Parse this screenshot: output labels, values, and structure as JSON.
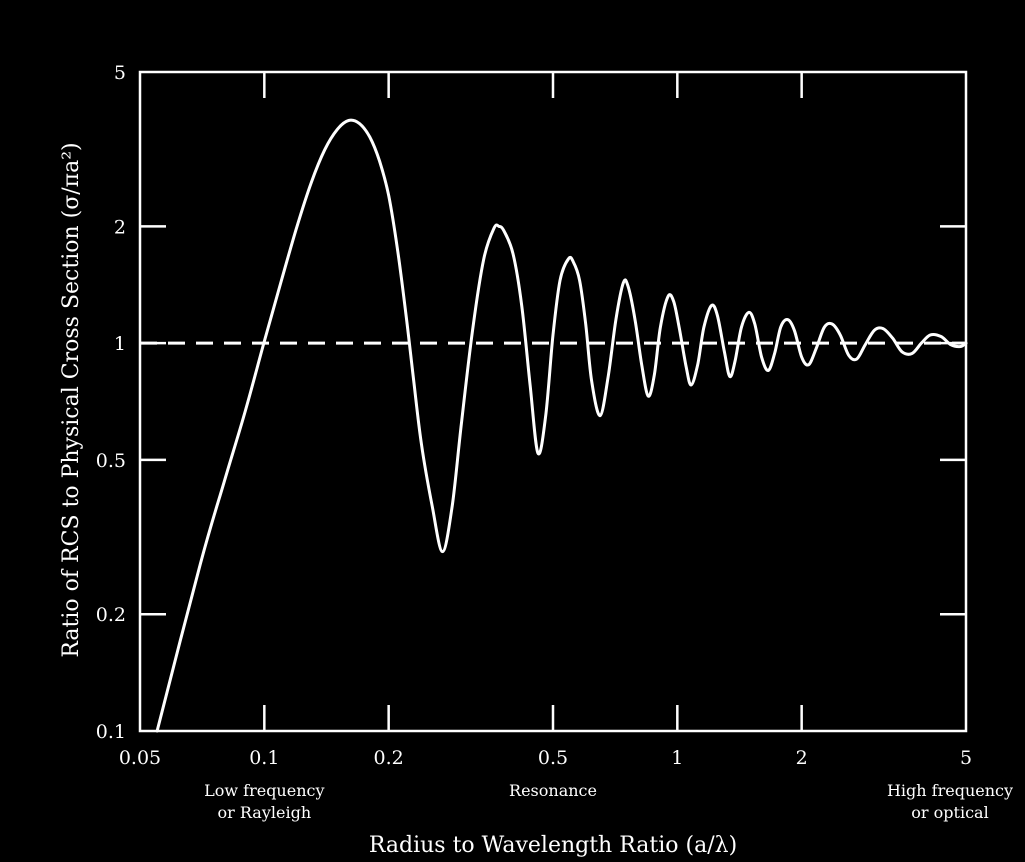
{
  "chart_data": {
    "type": "line",
    "title": "",
    "xlabel": "Radius to Wavelength Ratio (a/λ)",
    "ylabel": "Ratio of RCS to Physical Cross Section (σ/πa²)",
    "xscale": "log",
    "yscale": "log",
    "xlim": [
      0.05,
      5
    ],
    "ylim": [
      0.1,
      5
    ],
    "xticks": [
      {
        "value": 0.05,
        "label": "0.05"
      },
      {
        "value": 0.1,
        "label": "0.1"
      },
      {
        "value": 0.2,
        "label": "0.2"
      },
      {
        "value": 0.5,
        "label": "0.5"
      },
      {
        "value": 1,
        "label": "1"
      },
      {
        "value": 2,
        "label": "2"
      },
      {
        "value": 5,
        "label": "5"
      }
    ],
    "yticks": [
      {
        "value": 0.1,
        "label": "0.1"
      },
      {
        "value": 0.2,
        "label": "0.2"
      },
      {
        "value": 0.5,
        "label": "0.5"
      },
      {
        "value": 1,
        "label": "1"
      },
      {
        "value": 2,
        "label": "2"
      },
      {
        "value": 5,
        "label": "5"
      }
    ],
    "grid": false,
    "background": "#000000",
    "foreground": "#ffffff",
    "reference_line": {
      "y": 1,
      "style": "dashed"
    },
    "regions": [
      {
        "x": 0.1,
        "lines": [
          "Low frequency",
          "or Rayleigh"
        ]
      },
      {
        "x": 0.5,
        "lines": [
          "Resonance"
        ]
      },
      {
        "x": 5,
        "lines": [
          "High frequency",
          "or optical"
        ]
      }
    ],
    "series": [
      {
        "style": "solid",
        "color": "#ffffff",
        "points": [
          [
            0.055,
            0.1
          ],
          [
            0.07,
            0.27
          ],
          [
            0.08,
            0.44
          ],
          [
            0.09,
            0.67
          ],
          [
            0.1,
            1.01
          ],
          [
            0.11,
            1.45
          ],
          [
            0.12,
            2.0
          ],
          [
            0.13,
            2.6
          ],
          [
            0.14,
            3.15
          ],
          [
            0.15,
            3.55
          ],
          [
            0.16,
            3.75
          ],
          [
            0.17,
            3.68
          ],
          [
            0.18,
            3.4
          ],
          [
            0.19,
            2.95
          ],
          [
            0.2,
            2.4
          ],
          [
            0.21,
            1.75
          ],
          [
            0.22,
            1.2
          ],
          [
            0.23,
            0.8
          ],
          [
            0.24,
            0.55
          ],
          [
            0.255,
            0.38
          ],
          [
            0.27,
            0.29
          ],
          [
            0.285,
            0.38
          ],
          [
            0.3,
            0.62
          ],
          [
            0.32,
            1.1
          ],
          [
            0.34,
            1.65
          ],
          [
            0.36,
            1.98
          ],
          [
            0.37,
            2.0
          ],
          [
            0.38,
            1.95
          ],
          [
            0.4,
            1.7
          ],
          [
            0.42,
            1.25
          ],
          [
            0.44,
            0.78
          ],
          [
            0.46,
            0.52
          ],
          [
            0.48,
            0.65
          ],
          [
            0.5,
            1.05
          ],
          [
            0.52,
            1.45
          ],
          [
            0.545,
            1.65
          ],
          [
            0.56,
            1.62
          ],
          [
            0.58,
            1.45
          ],
          [
            0.6,
            1.12
          ],
          [
            0.62,
            0.8
          ],
          [
            0.65,
            0.65
          ],
          [
            0.68,
            0.82
          ],
          [
            0.71,
            1.15
          ],
          [
            0.74,
            1.43
          ],
          [
            0.76,
            1.4
          ],
          [
            0.79,
            1.15
          ],
          [
            0.82,
            0.88
          ],
          [
            0.85,
            0.73
          ],
          [
            0.88,
            0.83
          ],
          [
            0.91,
            1.1
          ],
          [
            0.95,
            1.32
          ],
          [
            0.98,
            1.28
          ],
          [
            1.01,
            1.1
          ],
          [
            1.05,
            0.87
          ],
          [
            1.08,
            0.78
          ],
          [
            1.12,
            0.88
          ],
          [
            1.16,
            1.1
          ],
          [
            1.21,
            1.25
          ],
          [
            1.25,
            1.18
          ],
          [
            1.3,
            0.95
          ],
          [
            1.34,
            0.82
          ],
          [
            1.38,
            0.9
          ],
          [
            1.43,
            1.1
          ],
          [
            1.49,
            1.2
          ],
          [
            1.54,
            1.12
          ],
          [
            1.6,
            0.92
          ],
          [
            1.66,
            0.85
          ],
          [
            1.72,
            0.94
          ],
          [
            1.78,
            1.1
          ],
          [
            1.85,
            1.15
          ],
          [
            1.92,
            1.08
          ],
          [
            2.0,
            0.92
          ],
          [
            2.08,
            0.88
          ],
          [
            2.17,
            0.97
          ],
          [
            2.27,
            1.1
          ],
          [
            2.37,
            1.12
          ],
          [
            2.48,
            1.05
          ],
          [
            2.6,
            0.93
          ],
          [
            2.72,
            0.91
          ],
          [
            2.85,
            0.99
          ],
          [
            3.0,
            1.08
          ],
          [
            3.15,
            1.09
          ],
          [
            3.32,
            1.03
          ],
          [
            3.5,
            0.95
          ],
          [
            3.7,
            0.94
          ],
          [
            3.9,
            1.0
          ],
          [
            4.1,
            1.05
          ],
          [
            4.35,
            1.04
          ],
          [
            4.6,
            0.99
          ],
          [
            4.85,
            0.98
          ],
          [
            5.0,
            1.0
          ]
        ]
      }
    ]
  }
}
